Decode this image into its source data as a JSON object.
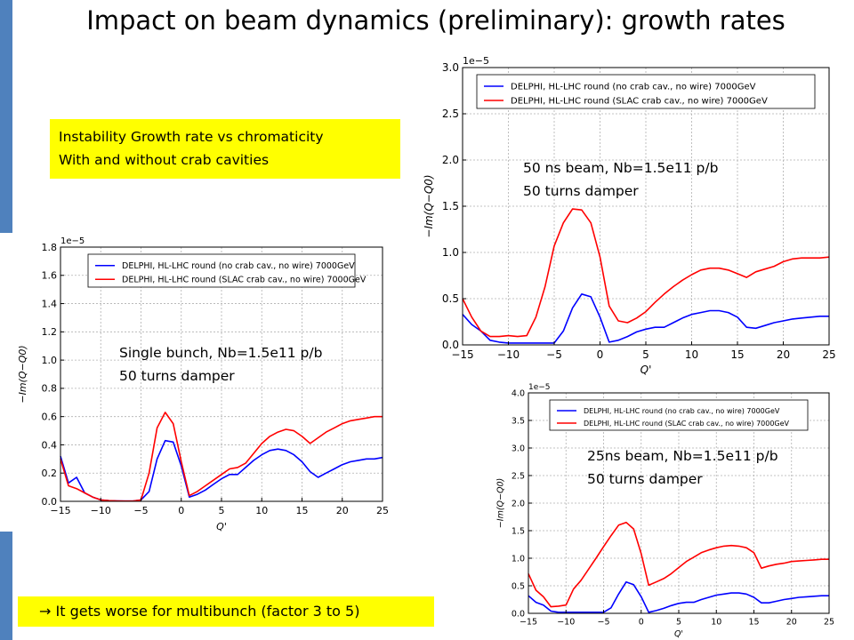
{
  "slide": {
    "title": "Impact on beam dynamics (preliminary): growth rates",
    "intro_line1": "Instability Growth rate vs chromaticity",
    "intro_line2": "With and without crab cavities",
    "conclusion": "→ It gets worse for multibunch (factor 3 to 5)",
    "colors": {
      "accent_bar": "#4f81bd",
      "highlight": "#ffff00"
    }
  },
  "annotations": [
    {
      "line1": "Single bunch, Nb=1.5e11 p/b",
      "line2": "50 turns damper"
    },
    {
      "line1": "50 ns beam, Nb=1.5e11 p/b",
      "line2": "50 turns damper"
    },
    {
      "line1": "25ns beam, Nb=1.5e11 p/b",
      "line2": "50 turns damper"
    }
  ],
  "chart_data": [
    {
      "type": "line",
      "title": "",
      "xlabel": "Q'",
      "ylabel": "−Im(Q−Q0)",
      "exponent_label": "1e−5",
      "xlim": [
        -15,
        25
      ],
      "ylim": [
        0,
        1.8
      ],
      "xticks": [
        -15,
        -10,
        -5,
        0,
        5,
        10,
        15,
        20,
        25
      ],
      "yticks": [
        0.0,
        0.2,
        0.4,
        0.6,
        0.8,
        1.0,
        1.2,
        1.4,
        1.6,
        1.8
      ],
      "ytick_labels": [
        "0.0",
        "0.2",
        "0.4",
        "0.6",
        "0.8",
        "1.0",
        "1.2",
        "1.4",
        "1.6",
        "1.8"
      ],
      "grid": true,
      "legend_position": "top",
      "series": [
        {
          "name": "DELPHI, HL-LHC round (no crab cav., no wire) 7000GeV",
          "color": "#0000ff",
          "x": [
            -15,
            -14,
            -13,
            -12,
            -11,
            -10,
            -9,
            -8,
            -7,
            -6,
            -5,
            -4,
            -3,
            -2,
            -1,
            0,
            1,
            2,
            3,
            4,
            5,
            6,
            7,
            8,
            9,
            10,
            11,
            12,
            13,
            14,
            15,
            16,
            17,
            18,
            19,
            20,
            21,
            22,
            23,
            24,
            25
          ],
          "values": [
            0.32,
            0.13,
            0.17,
            0.06,
            0.03,
            0.01,
            0.005,
            0.003,
            0.002,
            0.002,
            0.01,
            0.07,
            0.3,
            0.43,
            0.42,
            0.25,
            0.03,
            0.05,
            0.08,
            0.12,
            0.16,
            0.19,
            0.19,
            0.24,
            0.29,
            0.33,
            0.36,
            0.37,
            0.36,
            0.33,
            0.28,
            0.21,
            0.17,
            0.2,
            0.23,
            0.26,
            0.28,
            0.29,
            0.3,
            0.3,
            0.31
          ]
        },
        {
          "name": "DELPHI, HL-LHC round (SLAC crab cav., no wire) 7000GeV",
          "color": "#ff0000",
          "x": [
            -15,
            -14,
            -13,
            -12,
            -11,
            -10,
            -9,
            -8,
            -7,
            -6,
            -5,
            -4,
            -3,
            -2,
            -1,
            0,
            1,
            2,
            3,
            4,
            5,
            6,
            7,
            8,
            9,
            10,
            11,
            12,
            13,
            14,
            15,
            16,
            17,
            18,
            19,
            20,
            21,
            22,
            23,
            24,
            25
          ],
          "values": [
            0.3,
            0.11,
            0.09,
            0.06,
            0.03,
            0.01,
            0.005,
            0.003,
            0.002,
            0.002,
            0.01,
            0.2,
            0.52,
            0.63,
            0.55,
            0.28,
            0.04,
            0.07,
            0.11,
            0.15,
            0.19,
            0.23,
            0.24,
            0.27,
            0.34,
            0.41,
            0.46,
            0.49,
            0.51,
            0.5,
            0.46,
            0.41,
            0.45,
            0.49,
            0.52,
            0.55,
            0.57,
            0.58,
            0.59,
            0.6,
            0.6
          ]
        }
      ]
    },
    {
      "type": "line",
      "title": "",
      "xlabel": "Q'",
      "ylabel": "−Im(Q−Q0)",
      "exponent_label": "1e−5",
      "xlim": [
        -15,
        25
      ],
      "ylim": [
        0,
        3.0
      ],
      "xticks": [
        -15,
        -10,
        -5,
        0,
        5,
        10,
        15,
        20,
        25
      ],
      "yticks": [
        0.0,
        0.5,
        1.0,
        1.5,
        2.0,
        2.5,
        3.0
      ],
      "ytick_labels": [
        "0.0",
        "0.5",
        "1.0",
        "1.5",
        "2.0",
        "2.5",
        "3.0"
      ],
      "grid": true,
      "legend_position": "top",
      "series": [
        {
          "name": "DELPHI, HL-LHC round (no crab cav., no wire) 7000GeV",
          "color": "#0000ff",
          "x": [
            -15,
            -14,
            -13,
            -12,
            -11,
            -10,
            -9,
            -8,
            -7,
            -6,
            -5,
            -4,
            -3,
            -2,
            -1,
            0,
            1,
            2,
            3,
            4,
            5,
            6,
            7,
            8,
            9,
            10,
            11,
            12,
            13,
            14,
            15,
            16,
            17,
            18,
            19,
            20,
            21,
            22,
            23,
            24,
            25
          ],
          "values": [
            0.33,
            0.22,
            0.15,
            0.05,
            0.03,
            0.02,
            0.02,
            0.02,
            0.02,
            0.02,
            0.02,
            0.15,
            0.4,
            0.55,
            0.52,
            0.3,
            0.03,
            0.05,
            0.09,
            0.14,
            0.17,
            0.19,
            0.19,
            0.24,
            0.29,
            0.33,
            0.35,
            0.37,
            0.37,
            0.35,
            0.3,
            0.19,
            0.18,
            0.21,
            0.24,
            0.26,
            0.28,
            0.29,
            0.3,
            0.31,
            0.31
          ]
        },
        {
          "name": "DELPHI, HL-LHC round (SLAC crab cav., no wire) 7000GeV",
          "color": "#ff0000",
          "x": [
            -15,
            -14,
            -13,
            -12,
            -11,
            -10,
            -9,
            -8,
            -7,
            -6,
            -5,
            -4,
            -3,
            -2,
            -1,
            0,
            1,
            2,
            3,
            4,
            5,
            6,
            7,
            8,
            9,
            10,
            11,
            12,
            13,
            14,
            15,
            16,
            17,
            18,
            19,
            20,
            21,
            22,
            23,
            24,
            25
          ],
          "values": [
            0.5,
            0.3,
            0.15,
            0.09,
            0.09,
            0.1,
            0.09,
            0.1,
            0.3,
            0.63,
            1.07,
            1.32,
            1.47,
            1.46,
            1.32,
            0.95,
            0.42,
            0.26,
            0.24,
            0.29,
            0.36,
            0.46,
            0.55,
            0.63,
            0.7,
            0.76,
            0.81,
            0.83,
            0.83,
            0.81,
            0.77,
            0.73,
            0.79,
            0.82,
            0.85,
            0.9,
            0.93,
            0.94,
            0.94,
            0.94,
            0.95
          ]
        }
      ]
    },
    {
      "type": "line",
      "title": "",
      "xlabel": "Q'",
      "ylabel": "−Im(Q−Q0)",
      "exponent_label": "1e−5",
      "xlim": [
        -15,
        25
      ],
      "ylim": [
        0,
        4.0
      ],
      "xticks": [
        -15,
        -10,
        -5,
        0,
        5,
        10,
        15,
        20,
        25
      ],
      "yticks": [
        0.0,
        0.5,
        1.0,
        1.5,
        2.0,
        2.5,
        3.0,
        3.5,
        4.0
      ],
      "ytick_labels": [
        "0.0",
        "0.5",
        "1.0",
        "1.5",
        "2.0",
        "2.5",
        "3.0",
        "3.5",
        "4.0"
      ],
      "grid": true,
      "legend_position": "top",
      "series": [
        {
          "name": "DELPHI, HL-LHC round (no crab cav., no wire) 7000GeV",
          "color": "#0000ff",
          "x": [
            -15,
            -14,
            -13,
            -12,
            -11,
            -10,
            -9,
            -8,
            -7,
            -6,
            -5,
            -4,
            -3,
            -2,
            -1,
            0,
            1,
            2,
            3,
            4,
            5,
            6,
            7,
            8,
            9,
            10,
            11,
            12,
            13,
            14,
            15,
            16,
            17,
            18,
            19,
            20,
            21,
            22,
            23,
            24,
            25
          ],
          "values": [
            0.32,
            0.2,
            0.15,
            0.04,
            0.02,
            0.02,
            0.02,
            0.02,
            0.02,
            0.02,
            0.02,
            0.1,
            0.35,
            0.57,
            0.52,
            0.3,
            0.02,
            0.05,
            0.09,
            0.14,
            0.18,
            0.2,
            0.2,
            0.25,
            0.29,
            0.33,
            0.35,
            0.37,
            0.37,
            0.35,
            0.29,
            0.19,
            0.19,
            0.22,
            0.25,
            0.27,
            0.29,
            0.3,
            0.31,
            0.32,
            0.32
          ]
        },
        {
          "name": "DELPHI, HL-LHC round (SLAC crab cav., no wire) 7000GeV",
          "color": "#ff0000",
          "x": [
            -15,
            -14,
            -13,
            -12,
            -11,
            -10,
            -9,
            -8,
            -7,
            -6,
            -5,
            -4,
            -3,
            -2,
            -1,
            0,
            1,
            2,
            3,
            4,
            5,
            6,
            7,
            8,
            9,
            10,
            11,
            12,
            13,
            14,
            15,
            16,
            17,
            18,
            19,
            20,
            21,
            22,
            23,
            24,
            25
          ],
          "values": [
            0.72,
            0.42,
            0.3,
            0.12,
            0.13,
            0.15,
            0.44,
            0.6,
            0.8,
            1.0,
            1.21,
            1.41,
            1.6,
            1.65,
            1.53,
            1.08,
            0.51,
            0.57,
            0.63,
            0.72,
            0.83,
            0.94,
            1.02,
            1.1,
            1.15,
            1.19,
            1.22,
            1.23,
            1.22,
            1.19,
            1.1,
            0.82,
            0.86,
            0.89,
            0.91,
            0.94,
            0.95,
            0.96,
            0.97,
            0.98,
            0.98
          ]
        }
      ]
    }
  ]
}
